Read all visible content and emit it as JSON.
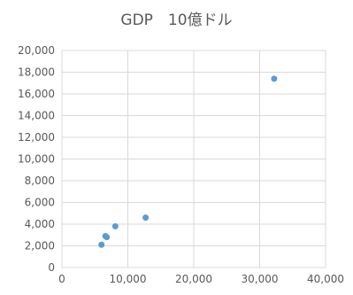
{
  "chart_data": {
    "type": "scatter",
    "title": "GDP　10億ドル",
    "xlabel": "",
    "ylabel": "",
    "xlim": [
      0,
      40000
    ],
    "ylim": [
      0,
      20000
    ],
    "x_ticks": [
      0,
      10000,
      20000,
      30000,
      40000
    ],
    "y_ticks": [
      0,
      2000,
      4000,
      6000,
      8000,
      10000,
      12000,
      14000,
      16000,
      18000,
      20000
    ],
    "x_tick_labels": [
      "0",
      "10,000",
      "20,000",
      "30,000",
      "40,000"
    ],
    "y_tick_labels": [
      "0",
      "2,000",
      "4,000",
      "6,000",
      "8,000",
      "10,000",
      "12,000",
      "14,000",
      "16,000",
      "18,000",
      "20,000"
    ],
    "grid": true,
    "legend": "none",
    "marker_color": "#5B9BD5",
    "points": [
      {
        "x": 6000,
        "y": 2100
      },
      {
        "x": 6600,
        "y": 2900
      },
      {
        "x": 6800,
        "y": 2800
      },
      {
        "x": 8100,
        "y": 3800
      },
      {
        "x": 12700,
        "y": 4600
      },
      {
        "x": 32200,
        "y": 17400
      }
    ]
  }
}
